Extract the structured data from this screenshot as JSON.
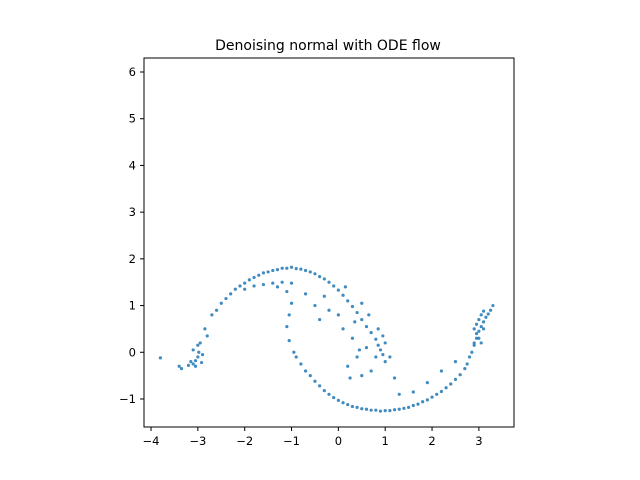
{
  "chart_data": {
    "type": "scatter",
    "title": "Denoising normal with ODE flow",
    "xlabel": "",
    "ylabel": "",
    "xlim": [
      -4.15,
      3.75
    ],
    "ylim": [
      -1.6,
      6.3
    ],
    "xticks": [
      -4,
      -3,
      -2,
      -1,
      0,
      1,
      2,
      3
    ],
    "yticks": [
      -1,
      0,
      1,
      2,
      3,
      4,
      5,
      6
    ],
    "xtick_labels": [
      "−4",
      "−3",
      "−2",
      "−1",
      "0",
      "1",
      "2",
      "3"
    ],
    "ytick_labels": [
      "−1",
      "0",
      "1",
      "2",
      "3",
      "4",
      "5",
      "6"
    ],
    "grid": false,
    "legend": null,
    "marker_color": "#1f77b4",
    "series": [
      {
        "points": [
          [
            -3.1,
            -0.25
          ],
          [
            -3.0,
            -0.1
          ],
          [
            -2.95,
            0.2
          ],
          [
            -2.85,
            0.5
          ],
          [
            -2.7,
            0.8
          ],
          [
            -2.5,
            1.05
          ],
          [
            -2.3,
            1.25
          ],
          [
            -2.1,
            1.42
          ],
          [
            -1.9,
            1.55
          ],
          [
            -1.7,
            1.65
          ],
          [
            -1.5,
            1.72
          ],
          [
            -1.3,
            1.77
          ],
          [
            -1.1,
            1.8
          ],
          [
            -0.9,
            1.79
          ],
          [
            -0.7,
            1.75
          ],
          [
            -0.5,
            1.68
          ],
          [
            -0.3,
            1.57
          ],
          [
            -0.1,
            1.42
          ],
          [
            0.1,
            1.22
          ],
          [
            0.3,
            0.98
          ],
          [
            0.5,
            0.7
          ],
          [
            0.7,
            0.42
          ],
          [
            0.85,
            0.15
          ],
          [
            0.95,
            -0.05
          ],
          [
            1.0,
            -0.2
          ],
          [
            -3.05,
            -0.3
          ],
          [
            -2.9,
            -0.05
          ],
          [
            -2.8,
            0.35
          ],
          [
            -2.6,
            0.9
          ],
          [
            -2.4,
            1.15
          ],
          [
            -2.2,
            1.35
          ],
          [
            -2.0,
            1.48
          ],
          [
            -1.8,
            1.6
          ],
          [
            -1.6,
            1.7
          ],
          [
            -1.4,
            1.75
          ],
          [
            -1.2,
            1.8
          ],
          [
            -1.0,
            1.82
          ],
          [
            -0.8,
            1.78
          ],
          [
            -0.6,
            1.72
          ],
          [
            -0.4,
            1.62
          ],
          [
            -0.2,
            1.5
          ],
          [
            0.0,
            1.33
          ],
          [
            0.2,
            1.1
          ],
          [
            0.4,
            0.85
          ],
          [
            0.6,
            0.55
          ],
          [
            0.8,
            0.28
          ],
          [
            0.9,
            0.05
          ],
          [
            -1.0,
            1.48
          ],
          [
            -1.2,
            1.5
          ],
          [
            -1.4,
            1.48
          ],
          [
            -1.6,
            1.45
          ],
          [
            -1.8,
            1.42
          ],
          [
            -2.0,
            1.35
          ],
          [
            -1.3,
            1.4
          ],
          [
            -1.1,
            1.3
          ],
          [
            -1.0,
            1.05
          ],
          [
            -1.05,
            0.8
          ],
          [
            -1.1,
            0.55
          ],
          [
            -1.05,
            0.25
          ],
          [
            -0.95,
            0.0
          ],
          [
            -0.8,
            -0.25
          ],
          [
            -0.6,
            -0.5
          ],
          [
            -0.4,
            -0.72
          ],
          [
            -0.2,
            -0.9
          ],
          [
            0.0,
            -1.03
          ],
          [
            0.2,
            -1.12
          ],
          [
            0.4,
            -1.18
          ],
          [
            0.6,
            -1.22
          ],
          [
            0.8,
            -1.24
          ],
          [
            1.0,
            -1.25
          ],
          [
            1.2,
            -1.23
          ],
          [
            1.4,
            -1.2
          ],
          [
            1.6,
            -1.14
          ],
          [
            1.8,
            -1.06
          ],
          [
            2.0,
            -0.96
          ],
          [
            2.2,
            -0.84
          ],
          [
            2.4,
            -0.68
          ],
          [
            2.6,
            -0.48
          ],
          [
            2.75,
            -0.25
          ],
          [
            2.85,
            0.0
          ],
          [
            2.95,
            0.3
          ],
          [
            3.05,
            0.55
          ],
          [
            3.15,
            0.75
          ],
          [
            3.25,
            0.9
          ],
          [
            3.3,
            1.0
          ],
          [
            -0.9,
            -0.1
          ],
          [
            -0.7,
            -0.4
          ],
          [
            -0.5,
            -0.62
          ],
          [
            -0.3,
            -0.82
          ],
          [
            -0.1,
            -0.97
          ],
          [
            0.1,
            -1.08
          ],
          [
            0.3,
            -1.16
          ],
          [
            0.5,
            -1.21
          ],
          [
            0.7,
            -1.24
          ],
          [
            0.9,
            -1.26
          ],
          [
            1.1,
            -1.25
          ],
          [
            1.3,
            -1.22
          ],
          [
            1.5,
            -1.18
          ],
          [
            1.7,
            -1.11
          ],
          [
            1.9,
            -1.02
          ],
          [
            2.1,
            -0.9
          ],
          [
            2.3,
            -0.76
          ],
          [
            2.5,
            -0.58
          ],
          [
            2.7,
            -0.35
          ],
          [
            2.8,
            -0.1
          ],
          [
            2.9,
            0.15
          ],
          [
            3.0,
            0.45
          ],
          [
            3.1,
            0.65
          ],
          [
            3.2,
            0.82
          ],
          [
            -3.2,
            -0.28
          ],
          [
            -3.15,
            -0.2
          ],
          [
            -3.05,
            -0.18
          ],
          [
            -2.98,
            0.0
          ],
          [
            -3.1,
            0.05
          ],
          [
            -3.0,
            0.15
          ],
          [
            -2.92,
            -0.22
          ],
          [
            2.9,
            0.5
          ],
          [
            2.95,
            0.6
          ],
          [
            3.0,
            0.7
          ],
          [
            3.05,
            0.8
          ],
          [
            3.1,
            0.88
          ],
          [
            2.95,
            0.4
          ],
          [
            3.0,
            0.3
          ],
          [
            2.9,
            0.2
          ],
          [
            3.05,
            0.2
          ],
          [
            3.1,
            0.5
          ],
          [
            -3.8,
            -0.12
          ],
          [
            -3.35,
            -0.35
          ],
          [
            -3.4,
            -0.3
          ],
          [
            0.95,
            0.35
          ],
          [
            0.85,
            0.5
          ],
          [
            0.6,
            0.1
          ],
          [
            0.4,
            -0.1
          ],
          [
            0.3,
            0.3
          ],
          [
            0.1,
            0.5
          ],
          [
            0.2,
            -0.3
          ],
          [
            0.7,
            -0.4
          ],
          [
            0.5,
            -0.5
          ],
          [
            0.35,
            0.65
          ],
          [
            0.45,
            0.05
          ],
          [
            0.8,
            -0.1
          ],
          [
            0.25,
            -0.55
          ],
          [
            1.0,
            0.2
          ],
          [
            1.1,
            -0.1
          ],
          [
            0.0,
            0.8
          ],
          [
            -0.2,
            0.9
          ],
          [
            -0.5,
            1.0
          ],
          [
            -0.3,
            1.2
          ],
          [
            0.15,
            1.4
          ],
          [
            -0.7,
            1.25
          ],
          [
            -0.4,
            0.7
          ],
          [
            0.5,
            1.05
          ],
          [
            0.65,
            0.8
          ],
          [
            1.9,
            -0.65
          ],
          [
            2.2,
            -0.4
          ],
          [
            2.5,
            -0.2
          ],
          [
            1.3,
            -0.9
          ],
          [
            1.6,
            -0.85
          ],
          [
            1.2,
            -0.55
          ]
        ]
      }
    ]
  }
}
